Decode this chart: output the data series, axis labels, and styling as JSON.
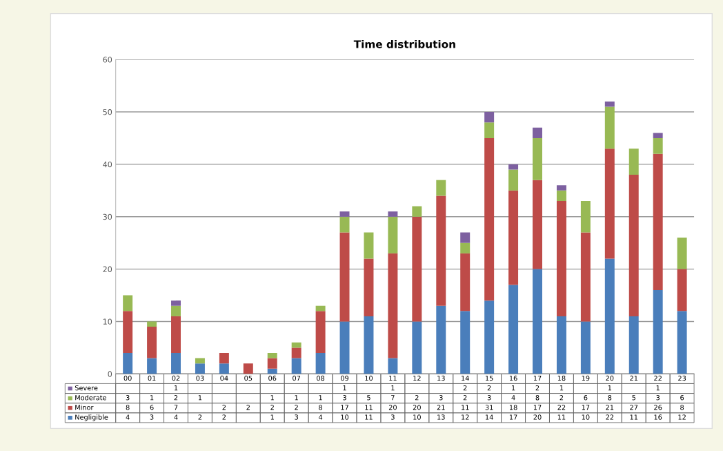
{
  "chart_data": {
    "type": "bar",
    "stacked": true,
    "title": "Time distribution",
    "categories": [
      "00",
      "01",
      "02",
      "03",
      "04",
      "05",
      "06",
      "07",
      "08",
      "09",
      "10",
      "11",
      "12",
      "13",
      "14",
      "15",
      "16",
      "17",
      "18",
      "19",
      "20",
      "21",
      "22",
      "23"
    ],
    "series": [
      {
        "name": "Negligible",
        "color": "#4a7ebb",
        "values": [
          4,
          3,
          4,
          2,
          2,
          null,
          1,
          3,
          4,
          10,
          11,
          3,
          10,
          13,
          12,
          14,
          17,
          20,
          11,
          10,
          22,
          11,
          16,
          12
        ]
      },
      {
        "name": "Minor",
        "color": "#be4b48",
        "values": [
          8,
          6,
          7,
          null,
          2,
          2,
          2,
          2,
          8,
          17,
          11,
          20,
          20,
          21,
          11,
          31,
          18,
          17,
          22,
          17,
          21,
          27,
          26,
          8
        ]
      },
      {
        "name": "Moderate",
        "color": "#98b954",
        "values": [
          3,
          1,
          2,
          1,
          null,
          null,
          1,
          1,
          1,
          3,
          5,
          7,
          2,
          3,
          2,
          3,
          4,
          8,
          2,
          6,
          8,
          5,
          3,
          6
        ]
      },
      {
        "name": "Severe",
        "color": "#7d60a0",
        "values": [
          null,
          null,
          1,
          null,
          null,
          null,
          null,
          null,
          null,
          1,
          null,
          1,
          null,
          null,
          2,
          2,
          1,
          2,
          1,
          null,
          1,
          null,
          1,
          null
        ]
      }
    ],
    "ylim": [
      0,
      60
    ],
    "yticks": [
      0,
      10,
      20,
      30,
      40,
      50,
      60
    ],
    "grid": "y",
    "data_labels": true,
    "legend": "bottom"
  }
}
